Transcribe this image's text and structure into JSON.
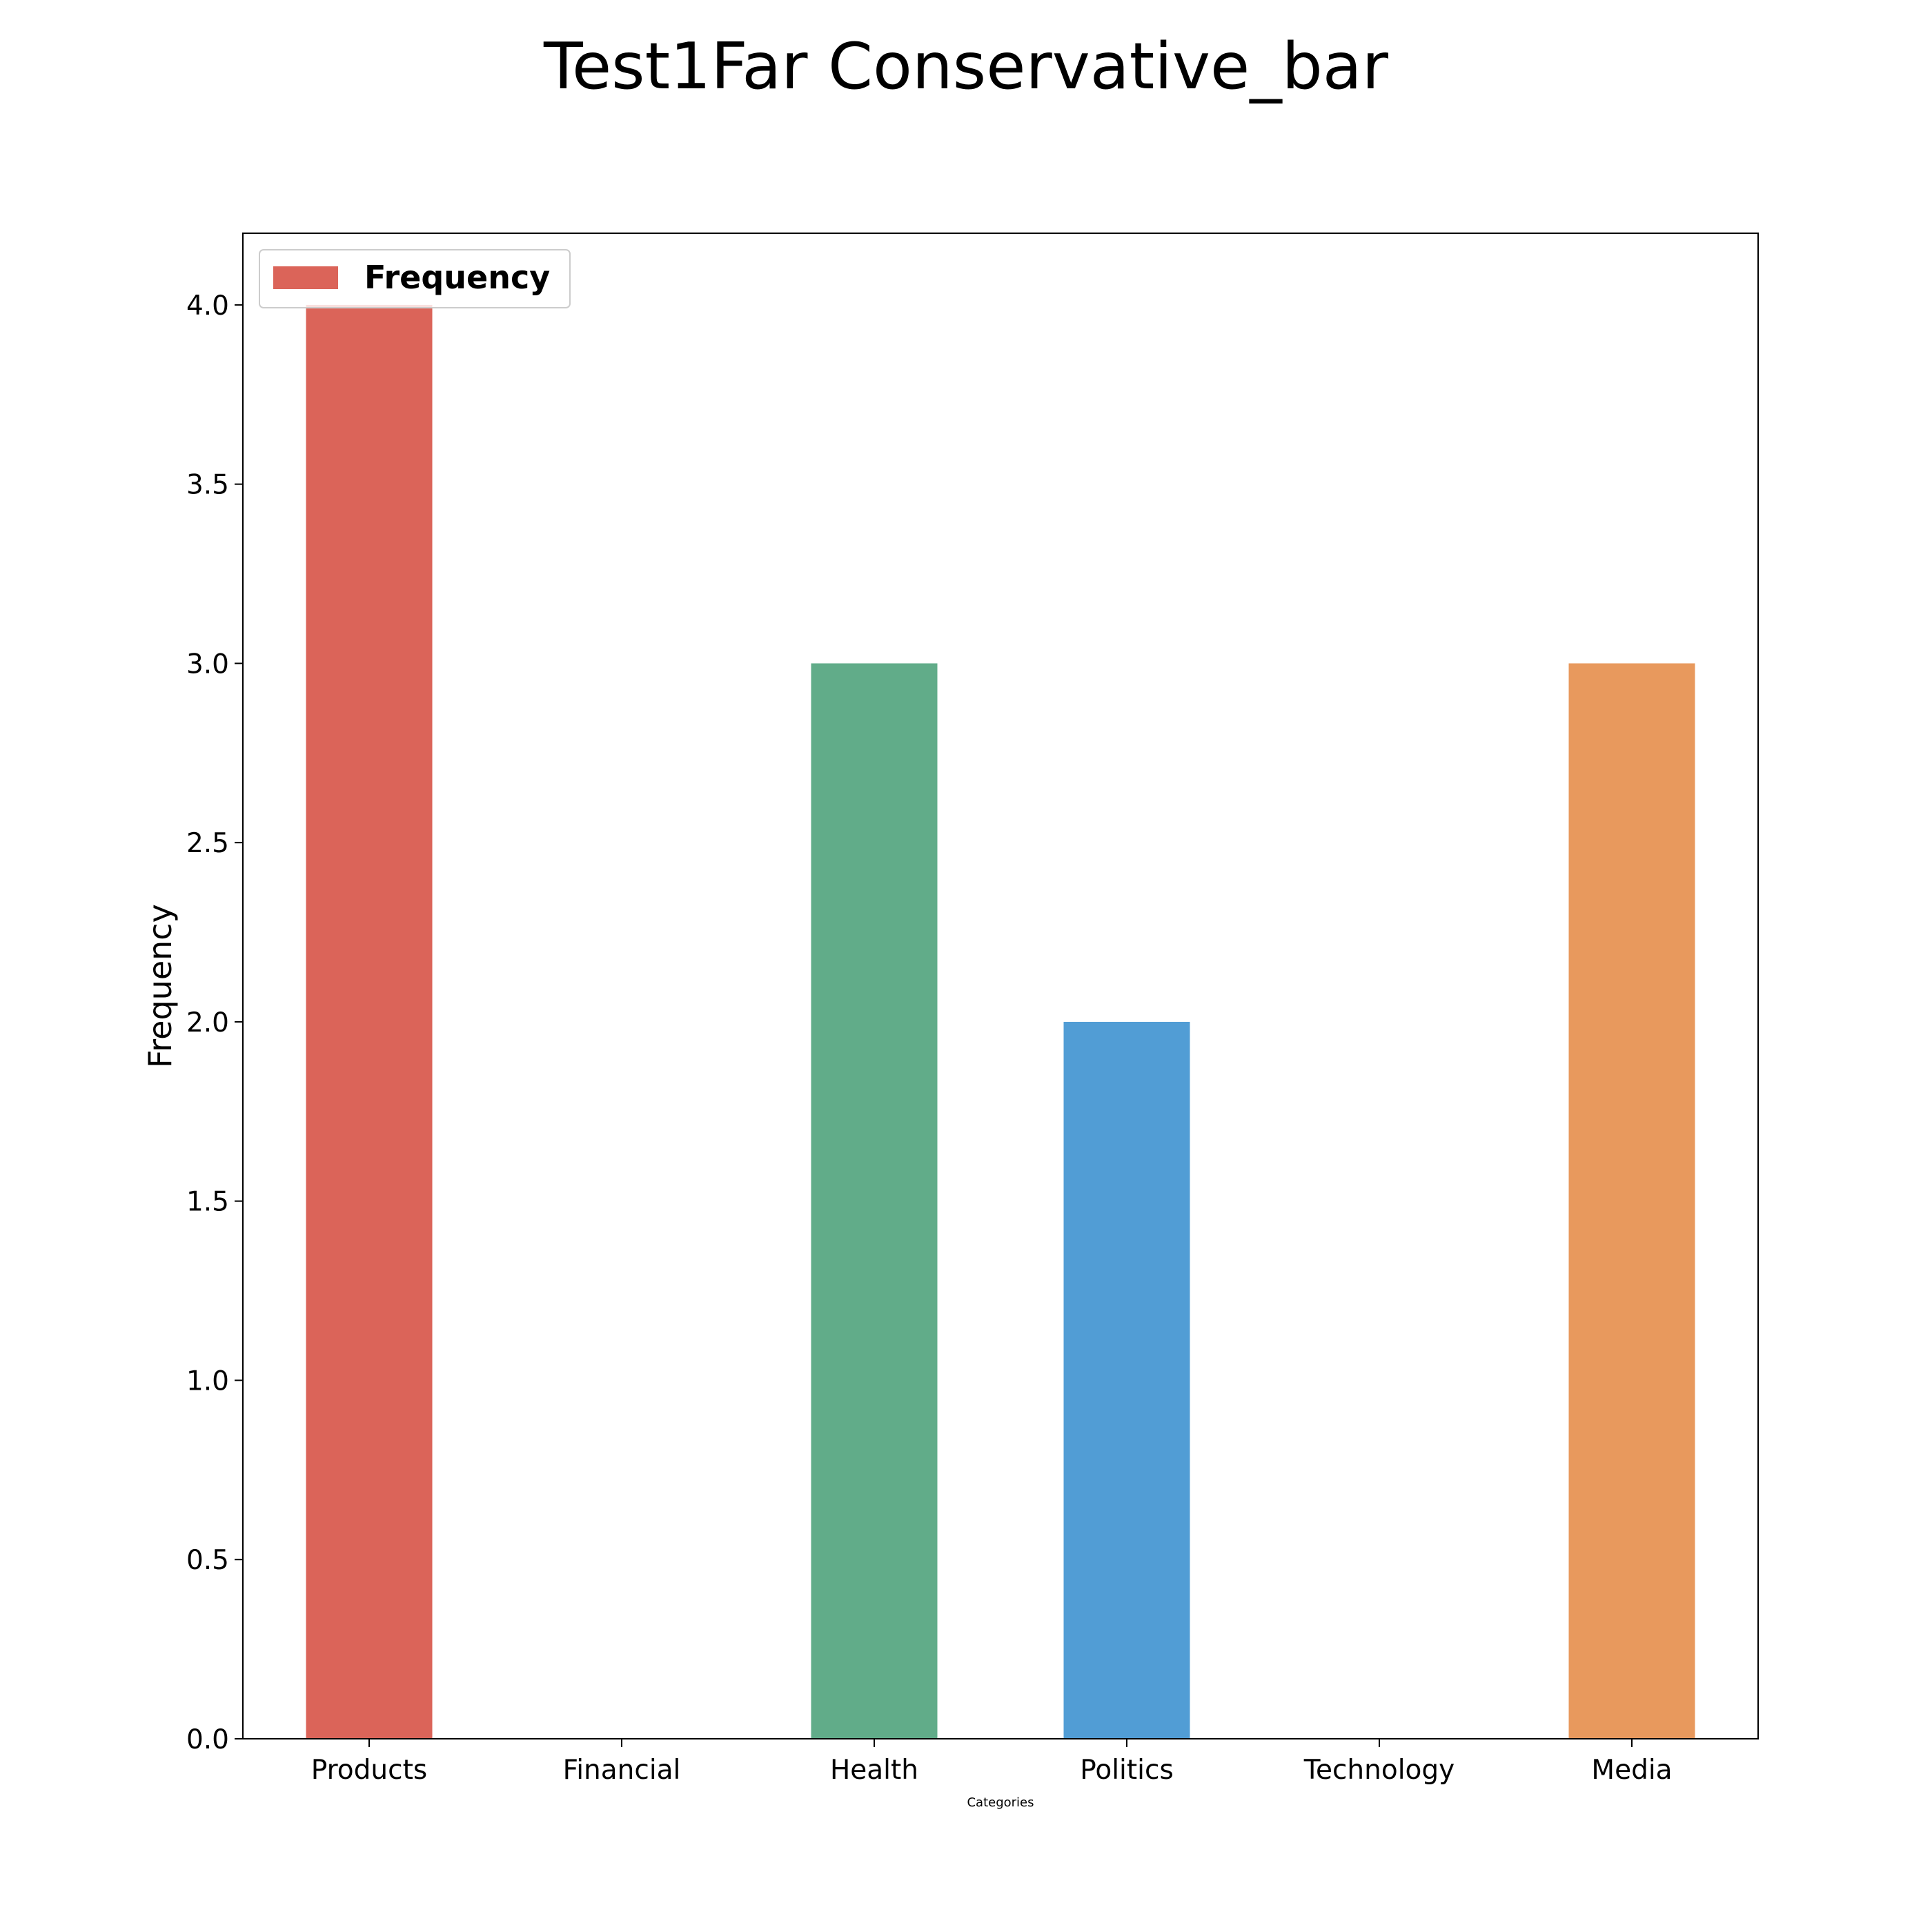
{
  "chart_data": {
    "type": "bar",
    "title": "Test1Far Conservative_bar",
    "xlabel": "Categories",
    "ylabel": "Frequency",
    "categories": [
      "Products",
      "Financial",
      "Health",
      "Politics",
      "Technology",
      "Media"
    ],
    "series": [
      {
        "name": "Frequency",
        "values": [
          4,
          0,
          3,
          2,
          0,
          3
        ],
        "colors": [
          "#db6459",
          "#db6459",
          "#61ac89",
          "#519dd5",
          "#519dd5",
          "#e8995d"
        ]
      }
    ],
    "ylim": [
      0,
      4.2
    ],
    "yticks": [
      0.0,
      0.5,
      1.0,
      1.5,
      2.0,
      2.5,
      3.0,
      3.5,
      4.0
    ],
    "ytick_labels": [
      "0.0",
      "0.5",
      "1.0",
      "1.5",
      "2.0",
      "2.5",
      "3.0",
      "3.5",
      "4.0"
    ],
    "grid": false,
    "legend": {
      "placement": "top-left",
      "entries": [
        {
          "label": "Frequency",
          "color": "#db6459"
        }
      ]
    }
  }
}
